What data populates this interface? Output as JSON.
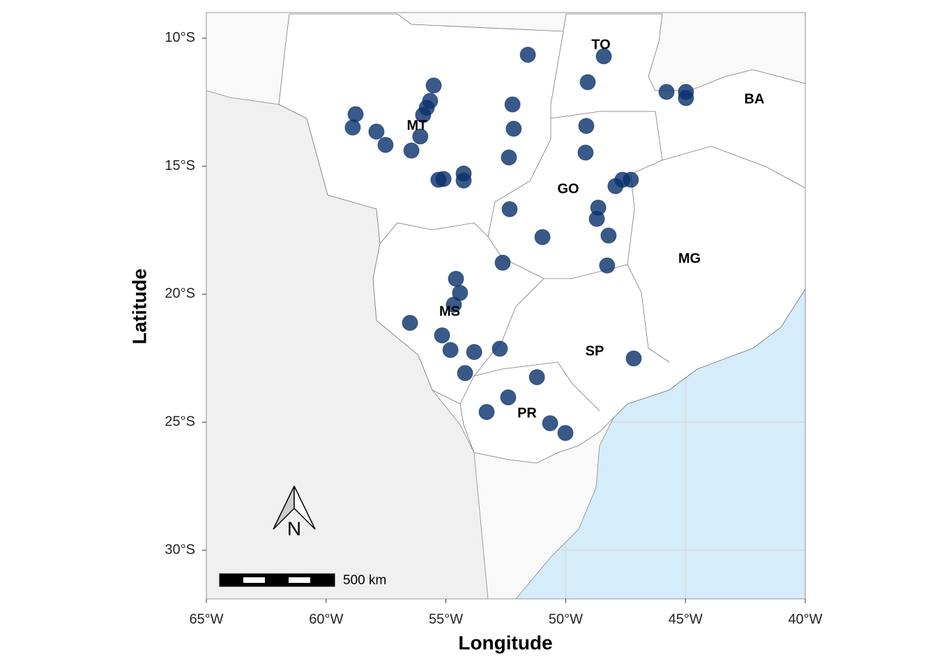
{
  "chart_data": {
    "type": "scatter",
    "xlabel": "Longitude",
    "ylabel": "Latitude",
    "xlim": [
      -65,
      -40
    ],
    "ylim": [
      -31.9,
      -9
    ],
    "xticks": [
      {
        "value": -65,
        "label": "65°W"
      },
      {
        "value": -60,
        "label": "60°W"
      },
      {
        "value": -55,
        "label": "55°W"
      },
      {
        "value": -50,
        "label": "50°W"
      },
      {
        "value": -45,
        "label": "45°W"
      },
      {
        "value": -40,
        "label": "40°W"
      }
    ],
    "yticks": [
      {
        "value": -10,
        "label": "10°S"
      },
      {
        "value": -15,
        "label": "15°S"
      },
      {
        "value": -20,
        "label": "20°S"
      },
      {
        "value": -25,
        "label": "25°S"
      },
      {
        "value": -30,
        "label": "30°S"
      }
    ],
    "grid": true,
    "color": "#08306b",
    "x": [
      -51.58,
      -48.41,
      -49.08,
      -45.79,
      -44.98,
      -44.98,
      -55.51,
      -55.66,
      -55.8,
      -55.95,
      -58.77,
      -58.89,
      -57.9,
      -56.07,
      -57.52,
      -56.44,
      -52.22,
      -52.17,
      -49.14,
      -49.17,
      -52.37,
      -55.31,
      -55.1,
      -54.26,
      -54.26,
      -52.34,
      -48.64,
      -48.7,
      -48.21,
      -50.97,
      -47.63,
      -47.28,
      -47.92,
      -48.27,
      -52.63,
      -54.58,
      -54.41,
      -54.67,
      -56.5,
      -55.16,
      -54.81,
      -53.82,
      -52.75,
      -54.2,
      -51.2,
      -52.4,
      -53.3,
      -50.65,
      -50.01,
      -47.16
    ],
    "values": [
      -10.65,
      -10.71,
      -11.72,
      -12.1,
      -12.1,
      -12.34,
      -11.85,
      -12.45,
      -12.72,
      -13.0,
      -12.97,
      -13.49,
      -13.65,
      -13.84,
      -14.17,
      -14.39,
      -12.59,
      -13.54,
      -13.43,
      -14.47,
      -14.66,
      -15.53,
      -15.5,
      -15.29,
      -15.56,
      -16.68,
      -16.62,
      -17.06,
      -17.71,
      -17.77,
      -15.53,
      -15.53,
      -15.78,
      -18.88,
      -18.77,
      -19.4,
      -19.95,
      -20.41,
      -21.12,
      -21.61,
      -22.18,
      -22.26,
      -22.13,
      -23.08,
      -23.24,
      -24.03,
      -24.6,
      -25.04,
      -25.42,
      -22.51
    ],
    "region_labels": [
      "TO",
      "BA",
      "MT",
      "GO",
      "MG",
      "MS",
      "SP",
      "PR"
    ],
    "north_label": "N",
    "scale_bar_label": "500 km"
  }
}
